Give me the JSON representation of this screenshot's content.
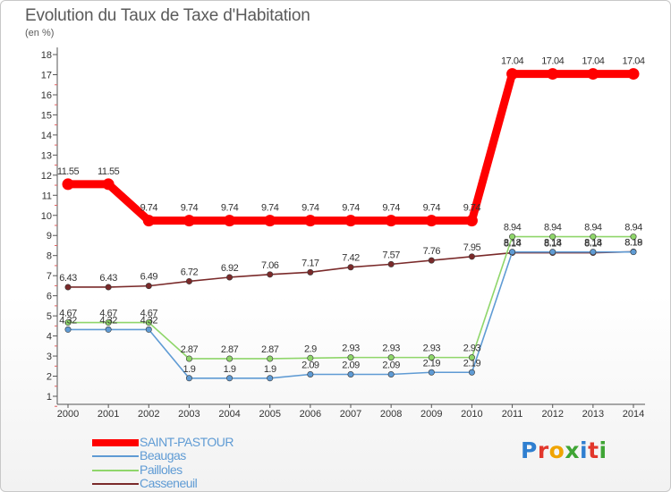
{
  "header": {
    "title": "Evolution du Taux de Taxe d'Habitation",
    "subtitle": "(en %)"
  },
  "logo": {
    "text": "Proxiti",
    "colors": [
      "#2f7fd0",
      "#e2372c",
      "#f0a400",
      "#3fa535",
      "#2f7fd0",
      "#e2372c",
      "#3fa535"
    ]
  },
  "chart_data": {
    "type": "line",
    "x": [
      "2000",
      "2001",
      "2002",
      "2003",
      "2004",
      "2005",
      "2006",
      "2007",
      "2008",
      "2009",
      "2010",
      "2011",
      "2012",
      "2013",
      "2014"
    ],
    "ylim": [
      1,
      18
    ],
    "yticks": [
      1,
      2,
      3,
      4,
      5,
      6,
      7,
      8,
      9,
      10,
      11,
      12,
      13,
      14,
      15,
      16,
      17,
      18
    ],
    "grid": false,
    "legend_position": "bottom-left",
    "series": [
      {
        "name": "SAINT-PASTOUR",
        "color": "#ff0000",
        "values": [
          11.55,
          11.55,
          9.74,
          9.74,
          9.74,
          9.74,
          9.74,
          9.74,
          9.74,
          9.74,
          9.74,
          17.04,
          17.04,
          17.04,
          17.04
        ],
        "labels": [
          "11.55",
          "11.55",
          "9.74",
          "9.74",
          "9.74",
          "9.74",
          "9.74",
          "9.74",
          "9.74",
          "9.74",
          "9.74",
          "17.04",
          "17.04",
          "17.04",
          "17.04"
        ]
      },
      {
        "name": "Beaugas",
        "color": "#5f9bd4",
        "values": [
          4.32,
          4.32,
          4.32,
          1.9,
          1.9,
          1.9,
          2.09,
          2.09,
          2.09,
          2.19,
          2.19,
          8.18,
          8.18,
          8.18,
          8.18
        ],
        "labels": [
          "4.32",
          "4.32",
          "4.32",
          "1.9",
          "1.9",
          "1.9",
          "2.09",
          "2.09",
          "2.09",
          "2.19",
          "2.19",
          "8.18",
          "8.18",
          "8.18",
          "8.18"
        ]
      },
      {
        "name": "Pailloles",
        "color": "#8fd66a",
        "values": [
          4.67,
          4.67,
          4.67,
          2.87,
          2.87,
          2.87,
          2.9,
          2.93,
          2.93,
          2.93,
          2.93,
          8.94,
          8.94,
          8.94,
          8.94
        ],
        "labels": [
          "4.67",
          "4.67",
          "4.67",
          "2.87",
          "2.87",
          "2.87",
          "2.9",
          "2.93",
          "2.93",
          "2.93",
          "2.93",
          "8.94",
          "8.94",
          "8.94",
          "8.94"
        ]
      },
      {
        "name": "Casseneuil",
        "color": "#7a2a2a",
        "values": [
          6.43,
          6.43,
          6.49,
          6.72,
          6.92,
          7.06,
          7.17,
          7.42,
          7.57,
          7.76,
          7.95,
          8.14,
          8.14,
          8.14,
          8.19
        ],
        "labels": [
          "6.43",
          "6.43",
          "6.49",
          "6.72",
          "6.92",
          "7.06",
          "7.17",
          "7.42",
          "7.57",
          "7.76",
          "7.95",
          "8.14",
          "8.14",
          "8.14",
          "8.19"
        ]
      }
    ]
  }
}
